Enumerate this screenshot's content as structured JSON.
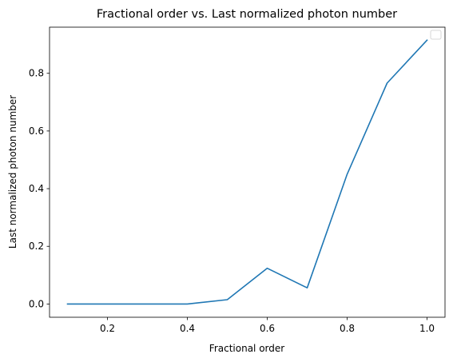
{
  "chart_data": {
    "type": "line",
    "title": "Fractional order vs. Last normalized photon number",
    "xlabel": "Fractional order",
    "ylabel": "Last normalized photon number",
    "xlim": [
      0.055,
      1.045
    ],
    "ylim": [
      -0.046,
      0.96
    ],
    "xticks": [
      0.2,
      0.4,
      0.6,
      0.8,
      1.0
    ],
    "xtick_labels": [
      "0.2",
      "0.4",
      "0.6",
      "0.8",
      "1.0"
    ],
    "yticks": [
      0.0,
      0.2,
      0.4,
      0.6,
      0.8
    ],
    "ytick_labels": [
      "0.0",
      "0.2",
      "0.4",
      "0.6",
      "0.8"
    ],
    "grid": false,
    "legend": {
      "placement": "top-right",
      "entries": []
    },
    "series": [
      {
        "color": "#1f77b4",
        "x": [
          0.1,
          0.2,
          0.3,
          0.4,
          0.5,
          0.6,
          0.7,
          0.8,
          0.9,
          1.0
        ],
        "y": [
          0.0,
          0.0,
          0.0,
          0.0,
          0.015,
          0.124,
          0.056,
          0.45,
          0.766,
          0.915
        ]
      }
    ]
  }
}
